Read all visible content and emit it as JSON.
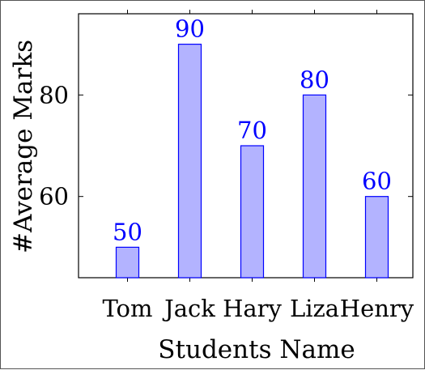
{
  "chart_data": {
    "type": "bar",
    "title": "",
    "xlabel": "Students Name",
    "ylabel": "#Average Marks",
    "categories": [
      "Tom",
      "Jack",
      "Hary",
      "Liza",
      "Henry"
    ],
    "values": [
      50,
      90,
      70,
      80,
      60
    ],
    "ylim": [
      44,
      96
    ],
    "yticks": [
      60,
      80
    ],
    "grid": false,
    "legend": "none",
    "bar_fill": "#b3b3ff",
    "bar_stroke": "#0000ff",
    "label_color": "#0000ff",
    "axis_color": "#000000"
  }
}
